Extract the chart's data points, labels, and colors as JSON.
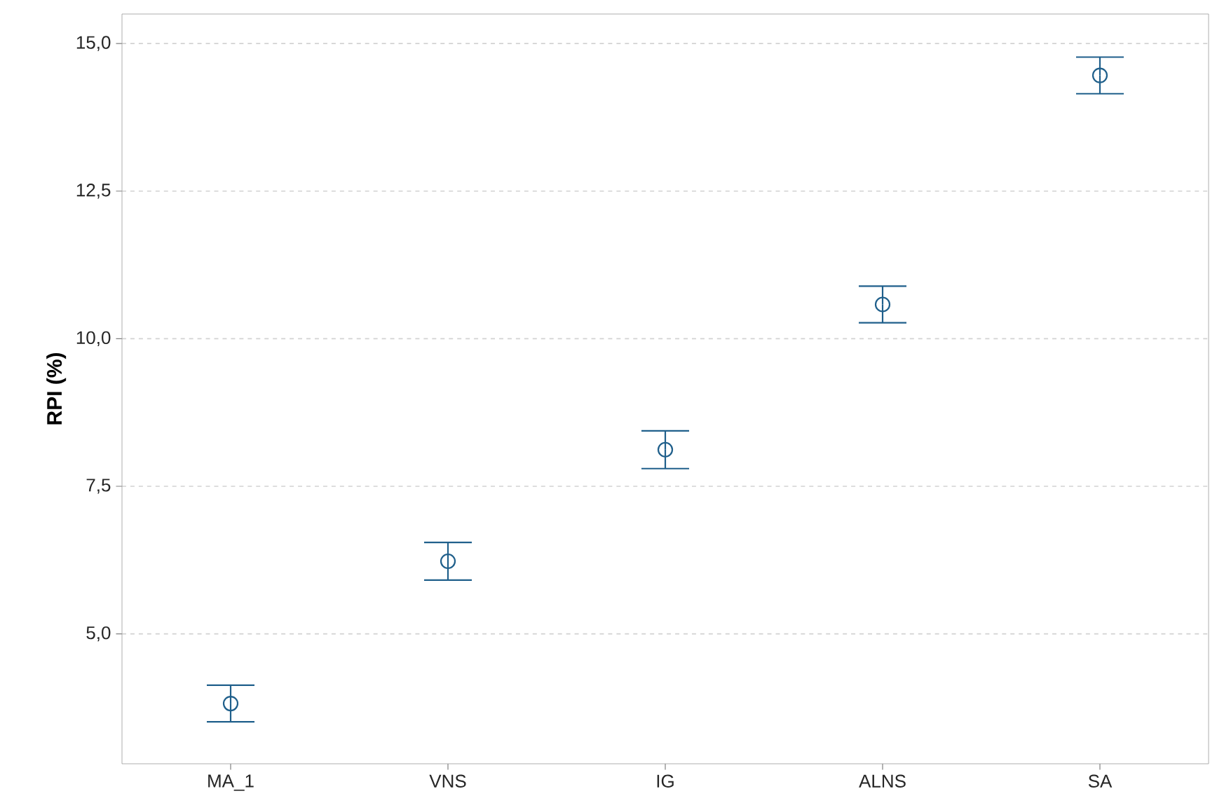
{
  "chart_data": {
    "type": "scatter",
    "ylabel": "RPI (%)",
    "categories": [
      "MA_1",
      "VNS",
      "IG",
      "ALNS",
      "SA"
    ],
    "values": [
      3.82,
      6.23,
      8.12,
      10.58,
      14.46
    ],
    "errors": [
      0.31,
      0.32,
      0.32,
      0.31,
      0.31
    ],
    "color": "#1f5f8b",
    "marker": "circle",
    "grid": "y",
    "ylim": [
      2.8,
      15.5
    ],
    "yticks": [
      {
        "value": 5,
        "label": "5,0"
      },
      {
        "value": 7.5,
        "label": "7,5"
      },
      {
        "value": 10,
        "label": "10,0"
      },
      {
        "value": 12.5,
        "label": "12,5"
      },
      {
        "value": 15,
        "label": "15,0"
      }
    ]
  }
}
